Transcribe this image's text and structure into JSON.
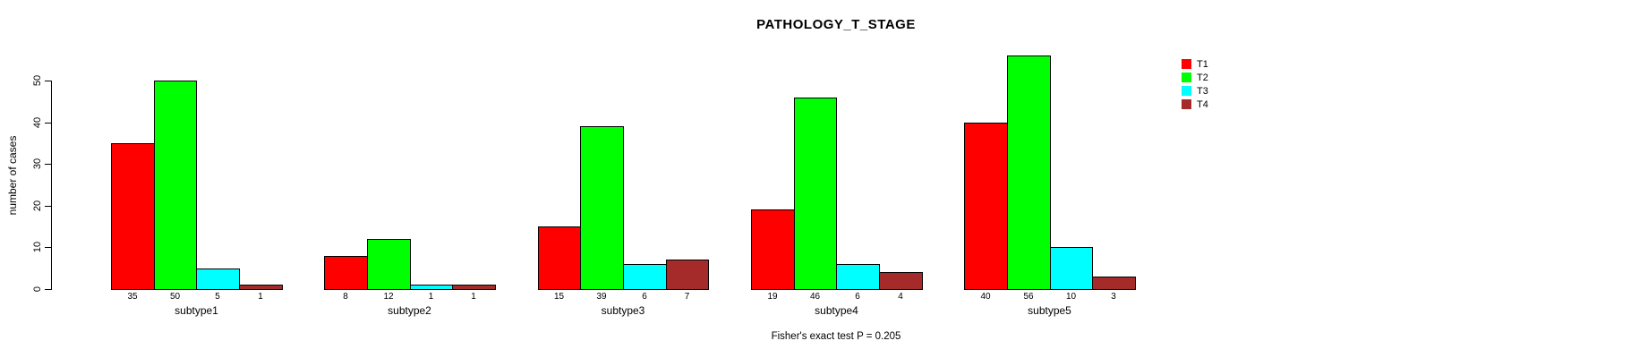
{
  "title": "PATHOLOGY_T_STAGE",
  "y_axis_label": "number of cases",
  "footer_annotation": "Fisher's exact test P = 0.205",
  "chart_data": {
    "type": "bar",
    "title": "PATHOLOGY_T_STAGE",
    "xlabel": "",
    "ylabel": "number of cases",
    "categories": [
      "subtype1",
      "subtype2",
      "subtype3",
      "subtype4",
      "subtype5"
    ],
    "series": [
      {
        "name": "T1",
        "color": "#ff0000",
        "values": [
          35,
          8,
          15,
          19,
          40
        ]
      },
      {
        "name": "T2",
        "color": "#00ff00",
        "values": [
          50,
          12,
          39,
          46,
          56
        ]
      },
      {
        "name": "T3",
        "color": "#00ffff",
        "values": [
          5,
          1,
          6,
          6,
          10
        ]
      },
      {
        "name": "T4",
        "color": "#a52a2a",
        "values": [
          1,
          1,
          7,
          4,
          3
        ]
      }
    ],
    "bar_value_labels": true,
    "yticks": [
      0,
      10,
      20,
      30,
      40,
      50
    ],
    "ylim": [
      0,
      50
    ],
    "grid": false,
    "legend_position": "right-outside-top",
    "annotation": "Fisher's exact test P = 0.205"
  }
}
